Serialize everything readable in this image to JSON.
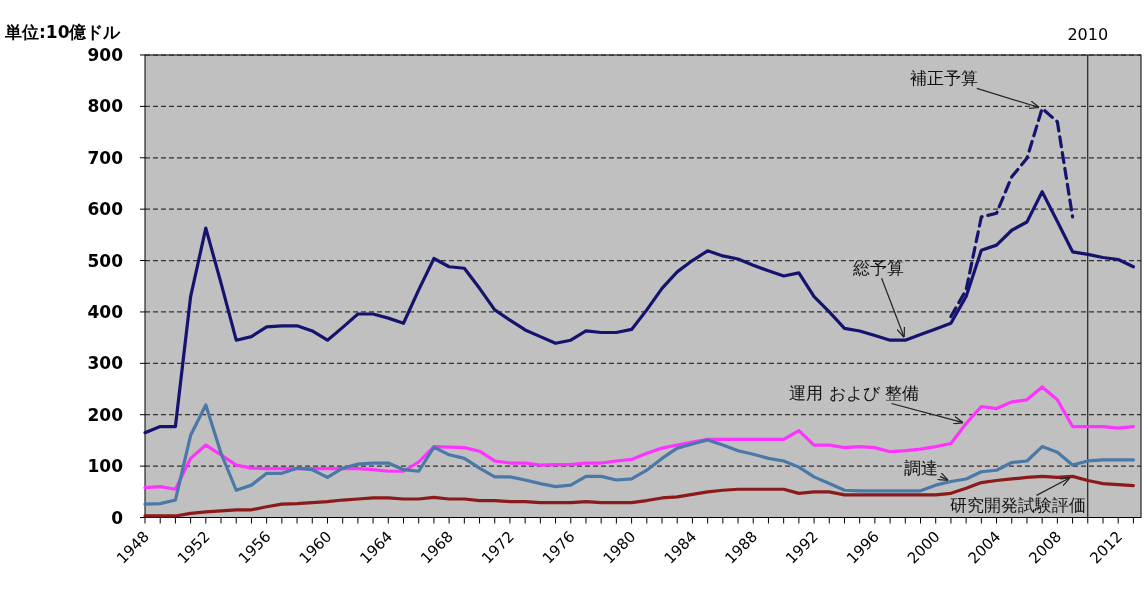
{
  "chart_data": {
    "type": "line",
    "ylabel": "単位:10億ドル",
    "x": [
      1948,
      1949,
      1950,
      1951,
      1952,
      1953,
      1954,
      1955,
      1956,
      1957,
      1958,
      1959,
      1960,
      1961,
      1962,
      1963,
      1964,
      1965,
      1966,
      1967,
      1968,
      1969,
      1970,
      1971,
      1972,
      1973,
      1974,
      1975,
      1976,
      1977,
      1978,
      1979,
      1980,
      1981,
      1982,
      1983,
      1984,
      1985,
      1986,
      1987,
      1988,
      1989,
      1990,
      1991,
      1992,
      1993,
      1994,
      1995,
      1996,
      1997,
      1998,
      1999,
      2000,
      2001,
      2002,
      2003,
      2004,
      2005,
      2006,
      2007,
      2008,
      2009,
      2010,
      2011,
      2012,
      2013
    ],
    "series": [
      {
        "name": "総予算",
        "color": "#14146e",
        "line_style": "solid",
        "values": [
          165,
          177,
          177,
          430,
          563,
          456,
          345,
          352,
          371,
          373,
          373,
          363,
          345,
          370,
          396,
          396,
          388,
          378,
          443,
          504,
          488,
          485,
          446,
          404,
          384,
          365,
          352,
          339,
          345,
          363,
          360,
          360,
          366,
          404,
          446,
          478,
          500,
          519,
          509,
          503,
          491,
          480,
          470,
          476,
          430,
          400,
          368,
          363,
          354,
          345,
          345,
          356,
          367,
          378,
          430,
          520,
          530,
          559,
          575,
          634,
          576,
          517,
          512,
          506,
          502,
          488
        ]
      },
      {
        "name": "補正予算",
        "color": "#14146e",
        "line_style": "dashed",
        "values": [
          null,
          null,
          null,
          null,
          null,
          null,
          null,
          null,
          null,
          null,
          null,
          null,
          null,
          null,
          null,
          null,
          null,
          null,
          null,
          null,
          null,
          null,
          null,
          null,
          null,
          null,
          null,
          null,
          null,
          null,
          null,
          null,
          null,
          null,
          null,
          null,
          null,
          null,
          null,
          null,
          null,
          null,
          null,
          null,
          null,
          null,
          null,
          null,
          null,
          null,
          null,
          null,
          null,
          391,
          443,
          585,
          592,
          663,
          699,
          796,
          770,
          585,
          null,
          null,
          null,
          null
        ]
      },
      {
        "name": "運用 および 整備",
        "color": "#ff33ff",
        "line_style": "solid",
        "values": [
          58,
          60,
          55,
          115,
          141,
          122,
          102,
          96,
          95,
          95,
          95,
          95,
          95,
          95,
          95,
          93,
          90,
          90,
          108,
          138,
          137,
          136,
          129,
          110,
          106,
          106,
          102,
          103,
          103,
          106,
          106,
          110,
          113,
          125,
          135,
          141,
          147,
          152,
          152,
          152,
          152,
          152,
          152,
          169,
          141,
          141,
          136,
          138,
          136,
          128,
          130,
          133,
          138,
          144,
          183,
          216,
          212,
          225,
          229,
          254,
          229,
          177,
          177,
          177,
          174,
          177
        ]
      },
      {
        "name": "調達",
        "color": "#4a78a8",
        "line_style": "solid",
        "values": [
          26,
          27,
          34,
          160,
          219,
          125,
          53,
          63,
          86,
          86,
          96,
          93,
          78,
          96,
          104,
          106,
          106,
          93,
          90,
          137,
          122,
          115,
          96,
          79,
          79,
          73,
          66,
          60,
          63,
          80,
          80,
          73,
          75,
          92,
          115,
          135,
          143,
          151,
          141,
          130,
          123,
          115,
          110,
          98,
          79,
          66,
          53,
          52,
          52,
          52,
          52,
          52,
          63,
          70,
          75,
          89,
          92,
          107,
          110,
          138,
          127,
          102,
          110,
          112,
          112,
          112
        ]
      },
      {
        "name": "研究開発試験評価",
        "color": "#8b1a1a",
        "line_style": "solid",
        "values": [
          3,
          3,
          3,
          8,
          11,
          13,
          15,
          15,
          21,
          26,
          27,
          29,
          31,
          34,
          36,
          38,
          38,
          36,
          36,
          39,
          36,
          36,
          33,
          33,
          31,
          31,
          29,
          29,
          29,
          31,
          29,
          29,
          29,
          33,
          38,
          40,
          45,
          50,
          53,
          55,
          55,
          55,
          55,
          47,
          50,
          50,
          44,
          44,
          44,
          44,
          44,
          44,
          44,
          47,
          57,
          68,
          72,
          75,
          78,
          80,
          78,
          80,
          72,
          66,
          64,
          62
        ]
      }
    ],
    "xlim": [
      1948,
      2013.5
    ],
    "xticks": [
      1948,
      {
        "value": 1949,
        "label": null
      },
      {
        "value": 1950,
        "label": null
      },
      {
        "value": 1951,
        "label": null
      },
      1952,
      {
        "value": 1953,
        "label": null
      },
      {
        "value": 1954,
        "label": null
      },
      {
        "value": 1955,
        "label": null
      },
      1956,
      {
        "value": 1957,
        "label": null
      },
      {
        "value": 1958,
        "label": null
      },
      {
        "value": 1959,
        "label": null
      },
      1960,
      {
        "value": 1961,
        "label": null
      },
      {
        "value": 1962,
        "label": null
      },
      {
        "value": 1963,
        "label": null
      },
      1964,
      {
        "value": 1965,
        "label": null
      },
      {
        "value": 1966,
        "label": null
      },
      {
        "value": 1967,
        "label": null
      },
      1968,
      {
        "value": 1969,
        "label": null
      },
      {
        "value": 1970,
        "label": null
      },
      {
        "value": 1971,
        "label": null
      },
      1972,
      {
        "value": 1973,
        "label": null
      },
      {
        "value": 1974,
        "label": null
      },
      {
        "value": 1975,
        "label": null
      },
      1976,
      {
        "value": 1977,
        "label": null
      },
      {
        "value": 1978,
        "label": null
      },
      {
        "value": 1979,
        "label": null
      },
      1980,
      {
        "value": 1981,
        "label": null
      },
      {
        "value": 1982,
        "label": null
      },
      {
        "value": 1983,
        "label": null
      },
      1984,
      {
        "value": 1985,
        "label": null
      },
      {
        "value": 1986,
        "label": null
      },
      {
        "value": 1987,
        "label": null
      },
      1988,
      {
        "value": 1989,
        "label": null
      },
      {
        "value": 1990,
        "label": null
      },
      {
        "value": 1991,
        "label": null
      },
      1992,
      {
        "value": 1993,
        "label": null
      },
      {
        "value": 1994,
        "label": null
      },
      {
        "value": 1995,
        "label": null
      },
      1996,
      {
        "value": 1997,
        "label": null
      },
      {
        "value": 1998,
        "label": null
      },
      {
        "value": 1999,
        "label": null
      },
      2000,
      {
        "value": 2001,
        "label": null
      },
      {
        "value": 2002,
        "label": null
      },
      {
        "value": 2003,
        "label": null
      },
      2004,
      {
        "value": 2005,
        "label": null
      },
      {
        "value": 2006,
        "label": null
      },
      {
        "value": 2007,
        "label": null
      },
      2008,
      {
        "value": 2009,
        "label": null
      },
      {
        "value": 2010,
        "label": null
      },
      {
        "value": 2011,
        "label": null
      },
      2012,
      {
        "value": 2013,
        "label": null
      }
    ],
    "ylim": [
      0,
      900
    ],
    "yticks": [
      0,
      100,
      200,
      300,
      400,
      500,
      600,
      700,
      800,
      900
    ],
    "grid": "y",
    "ref_lines": [
      {
        "axis": "x",
        "value": 2010,
        "label": "2010",
        "color": "#000000"
      }
    ]
  }
}
